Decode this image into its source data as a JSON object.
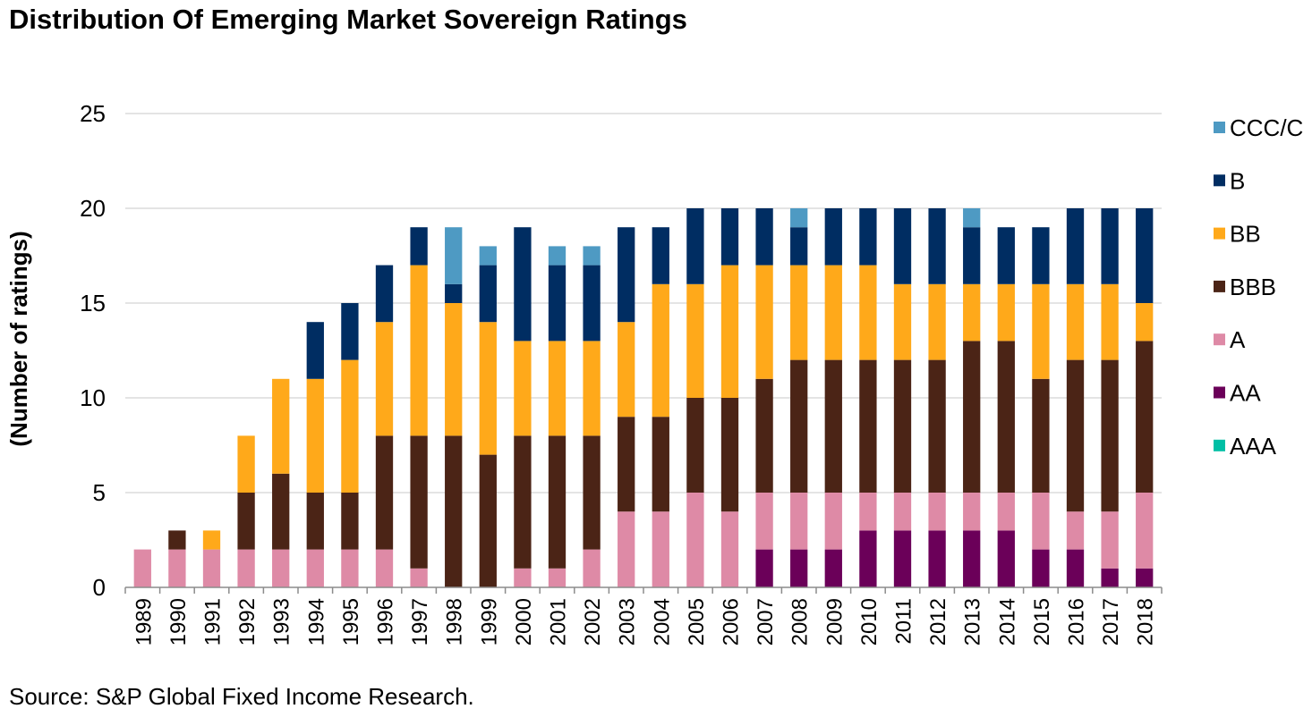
{
  "title": "Distribution Of Emerging Market Sovereign Ratings",
  "source": "Source: S&P Global Fixed Income Research.",
  "chart_data": {
    "type": "bar",
    "stacked": true,
    "title": "Distribution Of Emerging Market Sovereign Ratings",
    "xlabel": "",
    "ylabel": "(Number of ratings)",
    "ylim": [
      0,
      25
    ],
    "yticks": [
      0,
      5,
      10,
      15,
      20,
      25
    ],
    "grid": true,
    "legend_position": "right",
    "categories": [
      "1989",
      "1990",
      "1991",
      "1992",
      "1993",
      "1994",
      "1995",
      "1996",
      "1997",
      "1998",
      "1999",
      "2000",
      "2001",
      "2002",
      "2003",
      "2004",
      "2005",
      "2006",
      "2007",
      "2008",
      "2009",
      "2010",
      "2011",
      "2012",
      "2013",
      "2014",
      "2015",
      "2016",
      "2017",
      "2018"
    ],
    "series": [
      {
        "name": "AAA",
        "color": "#00BFA5",
        "values": [
          0,
          0,
          0,
          0,
          0,
          0,
          0,
          0,
          0,
          0,
          0,
          0,
          0,
          0,
          0,
          0,
          0,
          0,
          0,
          0,
          0,
          0,
          0,
          0,
          0,
          0,
          0,
          0,
          0,
          0
        ]
      },
      {
        "name": "AA",
        "color": "#6B0059",
        "values": [
          0,
          0,
          0,
          0,
          0,
          0,
          0,
          0,
          0,
          0,
          0,
          0,
          0,
          0,
          0,
          0,
          0,
          0,
          2,
          2,
          2,
          3,
          3,
          3,
          3,
          3,
          2,
          2,
          1,
          1
        ]
      },
      {
        "name": "A",
        "color": "#DE8AA6",
        "values": [
          2,
          2,
          2,
          2,
          2,
          2,
          2,
          2,
          1,
          0,
          0,
          1,
          1,
          2,
          4,
          4,
          5,
          4,
          3,
          3,
          3,
          2,
          2,
          2,
          2,
          2,
          3,
          2,
          3,
          4
        ]
      },
      {
        "name": "BBB",
        "color": "#4B2416",
        "values": [
          0,
          1,
          0,
          3,
          4,
          3,
          3,
          6,
          7,
          8,
          7,
          7,
          7,
          6,
          5,
          5,
          5,
          6,
          6,
          7,
          7,
          7,
          7,
          7,
          8,
          8,
          6,
          8,
          8,
          8
        ]
      },
      {
        "name": "BB",
        "color": "#FFA91A",
        "values": [
          0,
          0,
          1,
          3,
          5,
          6,
          7,
          6,
          9,
          7,
          7,
          5,
          5,
          5,
          5,
          7,
          6,
          7,
          6,
          5,
          5,
          5,
          4,
          4,
          3,
          3,
          5,
          4,
          4,
          2
        ]
      },
      {
        "name": "B",
        "color": "#002D62",
        "values": [
          0,
          0,
          0,
          0,
          0,
          3,
          3,
          3,
          2,
          1,
          3,
          6,
          4,
          4,
          5,
          3,
          4,
          3,
          3,
          2,
          3,
          3,
          4,
          4,
          3,
          3,
          3,
          4,
          4,
          5
        ]
      },
      {
        "name": "CCC/C",
        "color": "#4E9AC3",
        "values": [
          0,
          0,
          0,
          0,
          0,
          0,
          0,
          0,
          0,
          3,
          1,
          0,
          1,
          1,
          0,
          0,
          0,
          0,
          0,
          1,
          0,
          0,
          0,
          0,
          1,
          0,
          0,
          0,
          0,
          0
        ]
      }
    ],
    "legend_order": [
      "CCC/C",
      "B",
      "BB",
      "BBB",
      "A",
      "AA",
      "AAA"
    ]
  }
}
